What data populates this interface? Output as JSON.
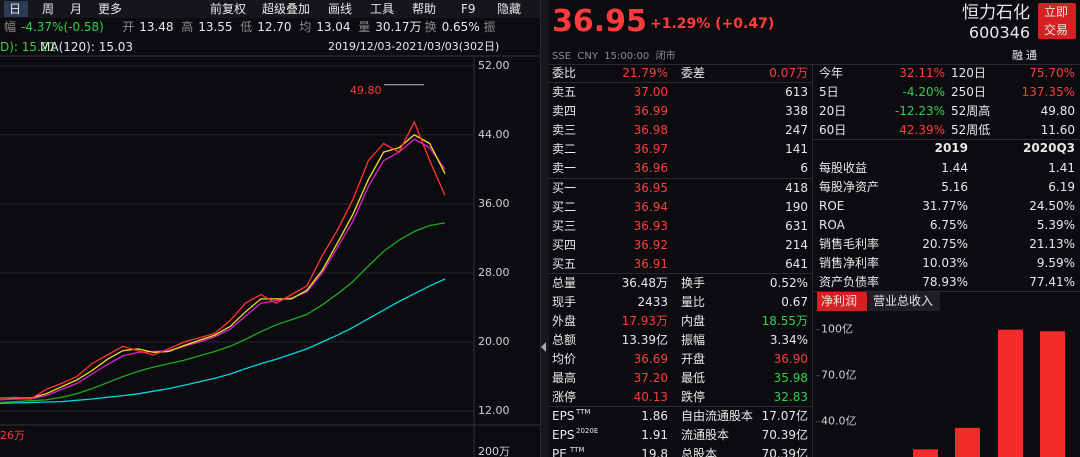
{
  "toolbar": [
    "日",
    "周",
    "月",
    "更多",
    "前复权",
    "超级叠加",
    "画线",
    "工具",
    "帮助",
    "F9",
    "隐藏"
  ],
  "quote_bar": [
    "幅",
    "-4.37%(-0.58)",
    "开",
    "13.48",
    "高",
    "13.55",
    "低",
    "12.70",
    "均",
    "13.04",
    "量",
    "30.17万",
    "换",
    "0.65%",
    "振"
  ],
  "ma_legend": [
    "D): 15.21",
    "MA(120): 15.03"
  ],
  "date_range": "2019/12/03-2021/03/03(302日)",
  "volume_labels": [
    "26万",
    "200万"
  ],
  "chart_data": [
    {
      "type": "line",
      "ylim": [
        11.2,
        52.9
      ],
      "yticks": [
        {
          "value": 52,
          "label": "52.00"
        },
        {
          "value": 44,
          "label": "44.00"
        },
        {
          "value": 36,
          "label": "36.00"
        },
        {
          "value": 28,
          "label": "28.00"
        },
        {
          "value": 20,
          "label": "20.00"
        },
        {
          "value": 12,
          "label": "12.00"
        }
      ],
      "grid": true,
      "annotation": {
        "value": 49.8,
        "label": "49.80"
      },
      "series": [
        {
          "color": "#00d5e0",
          "values": [
            12.9,
            12.95,
            13.0,
            13.05,
            13.1,
            13.25,
            13.4,
            13.6,
            13.8,
            14.0,
            14.3,
            14.6,
            15.0,
            15.4,
            15.8,
            16.3,
            16.9,
            17.5,
            18.0,
            18.6,
            19.2,
            20.0,
            20.8,
            21.7,
            22.7,
            23.7,
            24.7,
            25.6,
            26.5,
            27.3
          ]
        },
        {
          "color": "#1fa81f",
          "values": [
            13.0,
            13.1,
            13.2,
            13.3,
            13.6,
            14.0,
            14.6,
            15.3,
            16.0,
            16.6,
            17.1,
            17.5,
            17.9,
            18.4,
            18.9,
            19.5,
            20.3,
            21.2,
            22.0,
            22.6,
            23.2,
            24.3,
            25.6,
            27.0,
            28.8,
            30.5,
            31.8,
            32.8,
            33.5,
            33.8
          ]
        },
        {
          "color": "#e020d0",
          "values": [
            13.3,
            13.4,
            13.4,
            13.8,
            14.5,
            15.2,
            16.3,
            17.4,
            18.4,
            18.8,
            18.9,
            19.0,
            19.5,
            20.0,
            20.6,
            21.5,
            23.0,
            24.5,
            24.8,
            25.1,
            25.8,
            28.0,
            31.0,
            34.0,
            38.0,
            41.0,
            42.0,
            43.5,
            42.5,
            40.0
          ]
        },
        {
          "color": "#f2e01c",
          "values": [
            13.5,
            13.55,
            13.5,
            14.0,
            14.8,
            15.6,
            16.7,
            18.0,
            19.0,
            19.2,
            18.8,
            18.9,
            19.6,
            20.2,
            20.8,
            21.8,
            23.5,
            25.0,
            25.0,
            25.0,
            26.0,
            28.3,
            31.5,
            34.8,
            38.8,
            42.0,
            42.5,
            44.0,
            43.0,
            39.5
          ]
        },
        {
          "color": "#ff3333",
          "values": [
            13.5,
            13.6,
            13.4,
            14.5,
            15.2,
            16.0,
            17.5,
            18.5,
            19.5,
            19.0,
            18.5,
            19.2,
            20.0,
            20.5,
            21.0,
            22.5,
            24.5,
            25.5,
            24.5,
            25.5,
            26.5,
            30.0,
            33.0,
            36.5,
            41.0,
            43.0,
            42.0,
            45.5,
            41.0,
            37.0
          ]
        }
      ]
    },
    {
      "type": "bar",
      "color": "#f52a2a",
      "ylim": [
        17,
        105
      ],
      "yticks": [
        {
          "value": 100,
          "label": "100亿"
        },
        {
          "value": 70,
          "label": "70.0亿"
        },
        {
          "value": 40,
          "label": "40.0亿"
        }
      ],
      "values": [
        22,
        36,
        100,
        99
      ]
    }
  ],
  "quote": {
    "price": "36.95",
    "change": "+1.29% (+0.47)",
    "name": "恒力石化",
    "code": "600346",
    "trade_button": [
      "立即",
      "交易"
    ],
    "status": "SSE  CNY  15:00:00  闭市",
    "badges": [
      "融",
      "通"
    ]
  },
  "order_book": {
    "header": [
      "委比",
      "21.79%",
      "委差",
      "0.07万"
    ],
    "asks": [
      [
        "卖五",
        "37.00",
        "613"
      ],
      [
        "卖四",
        "36.99",
        "338"
      ],
      [
        "卖三",
        "36.98",
        "247"
      ],
      [
        "卖二",
        "36.97",
        "141"
      ],
      [
        "卖一",
        "36.96",
        "6"
      ]
    ],
    "bids": [
      [
        "买一",
        "36.95",
        "418"
      ],
      [
        "买二",
        "36.94",
        "190"
      ],
      [
        "买三",
        "36.93",
        "631"
      ],
      [
        "买四",
        "36.92",
        "214"
      ],
      [
        "买五",
        "36.91",
        "641"
      ]
    ]
  },
  "stats": [
    [
      "总量",
      "36.48万",
      "换手",
      "0.52%"
    ],
    [
      "现手",
      "2433",
      "量比",
      "0.67"
    ],
    [
      "外盘",
      "17.93万",
      "内盘",
      "18.55万"
    ],
    [
      "总额",
      "13.39亿",
      "振幅",
      "3.34%"
    ],
    [
      "均价",
      "36.69",
      "开盘",
      "36.90"
    ],
    [
      "最高",
      "37.20",
      "最低",
      "35.98"
    ],
    [
      "涨停",
      "40.13",
      "跌停",
      "32.83"
    ]
  ],
  "fundamentals": [
    {
      "label": "EPS",
      "sup": "TTM",
      "value": "1.86",
      "label2": "自由流通股本",
      "value2": "17.07亿"
    },
    {
      "label": "EPS",
      "sup": "2020E",
      "value": "1.91",
      "label2": "流通股本",
      "value2": "70.39亿"
    },
    {
      "label": "PE",
      "sup": "TTM",
      "value": "19.8",
      "label2": "总股本",
      "value2": "70.39亿"
    }
  ],
  "performance": [
    [
      "今年",
      "32.11%",
      "120日",
      "75.70%"
    ],
    [
      "5日",
      "-4.20%",
      "250日",
      "137.35%"
    ],
    [
      "20日",
      "-12.23%",
      "52周高",
      "49.80"
    ],
    [
      "60日",
      "42.39%",
      "52周低",
      "11.60"
    ]
  ],
  "finance": {
    "columns": [
      "2019",
      "2020Q3"
    ],
    "rows": [
      [
        "每股收益",
        "1.44",
        "1.41"
      ],
      [
        "每股净资产",
        "5.16",
        "6.19"
      ],
      [
        "ROE",
        "31.77%",
        "24.50%"
      ],
      [
        "ROA",
        "6.75%",
        "5.39%"
      ],
      [
        "销售毛利率",
        "20.75%",
        "21.13%"
      ],
      [
        "销售净利率",
        "10.03%",
        "9.59%"
      ],
      [
        "资产负债率",
        "78.93%",
        "77.41%"
      ]
    ]
  },
  "tabs": [
    "净利润",
    "营业总收入"
  ]
}
